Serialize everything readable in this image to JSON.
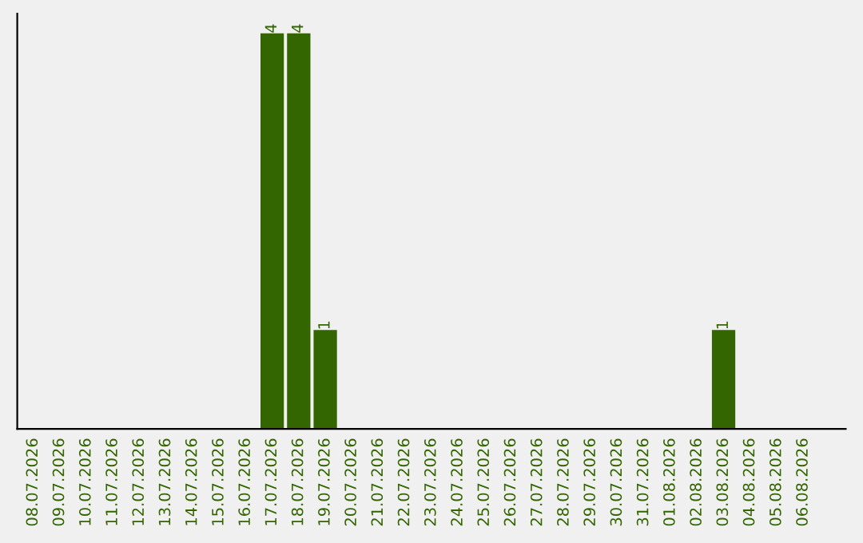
{
  "chart_data": {
    "type": "bar",
    "categories": [
      "08.07.2026",
      "09.07.2026",
      "10.07.2026",
      "11.07.2026",
      "12.07.2026",
      "13.07.2026",
      "14.07.2026",
      "15.07.2026",
      "16.07.2026",
      "17.07.2026",
      "18.07.2026",
      "19.07.2026",
      "20.07.2026",
      "21.07.2026",
      "22.07.2026",
      "23.07.2026",
      "24.07.2026",
      "25.07.2026",
      "26.07.2026",
      "27.07.2026",
      "28.07.2026",
      "29.07.2026",
      "30.07.2026",
      "31.07.2026",
      "01.08.2026",
      "02.08.2026",
      "03.08.2026",
      "04.08.2026",
      "05.08.2026",
      "06.08.2026"
    ],
    "values": [
      0,
      0,
      0,
      0,
      0,
      0,
      0,
      0,
      0,
      4,
      4,
      1,
      0,
      0,
      0,
      0,
      0,
      0,
      0,
      0,
      0,
      0,
      0,
      0,
      0,
      0,
      1,
      0,
      0,
      0
    ],
    "value_labels": [
      null,
      null,
      null,
      null,
      null,
      null,
      null,
      null,
      null,
      "4",
      "4",
      "1",
      null,
      null,
      null,
      null,
      null,
      null,
      null,
      null,
      null,
      null,
      null,
      null,
      null,
      null,
      "1",
      null,
      null,
      null
    ],
    "color": "#336600",
    "tick_labels": "x",
    "grid": false,
    "legend": false
  }
}
